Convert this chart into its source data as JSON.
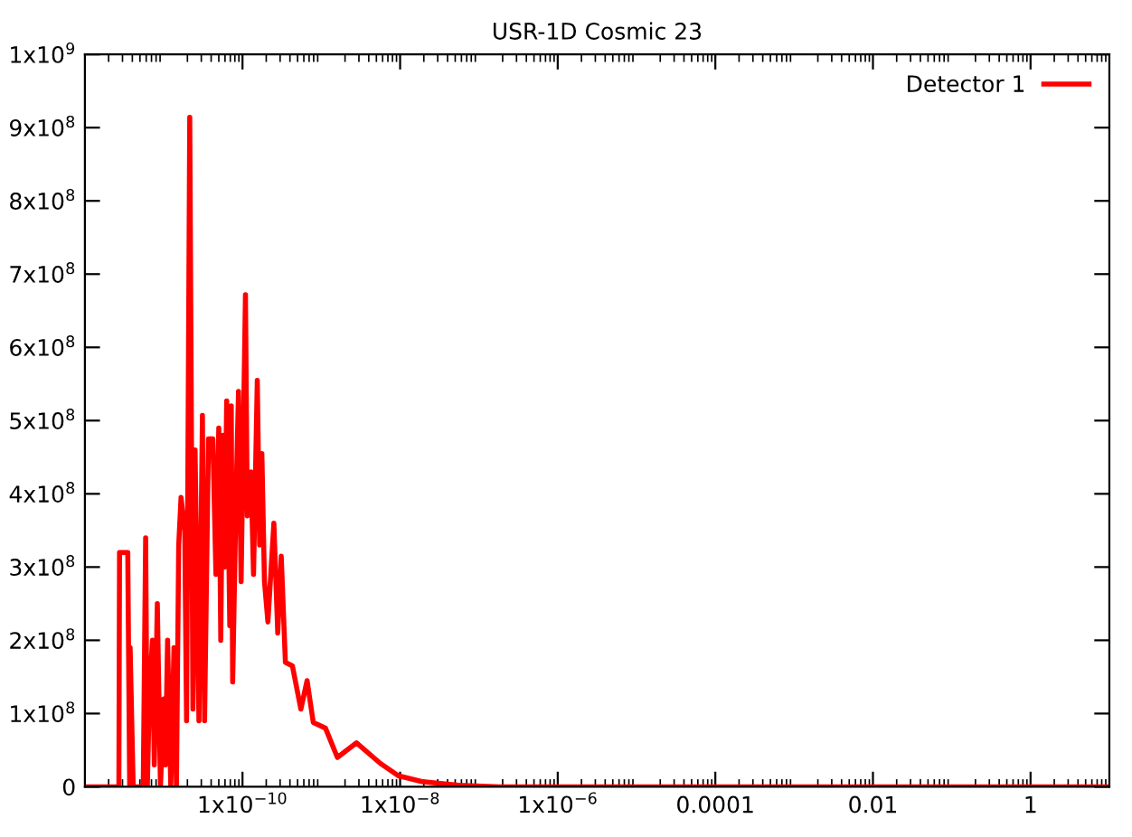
{
  "chart_data": {
    "type": "line",
    "title": "USR-1D Cosmic 23",
    "log": "x",
    "legend": "top right",
    "grid": false,
    "marker": "none",
    "line_style": "solid",
    "xlim": [
      1e-12,
      10
    ],
    "ylim": [
      0,
      1000000000
    ],
    "xticks": [
      {
        "value": 1e-10,
        "label": "1x10$^{−10}$"
      },
      {
        "value": 1e-08,
        "label": "1x10$^{−8}$"
      },
      {
        "value": 1e-06,
        "label": "1x10$^{−6}$"
      },
      0.0001,
      0.01,
      1
    ],
    "yticks": [
      0,
      {
        "value": 100000000,
        "label": "1x10$^{8}$"
      },
      {
        "value": 200000000,
        "label": "2x10$^{8}$"
      },
      {
        "value": 300000000,
        "label": "3x10$^{8}$"
      },
      {
        "value": 400000000,
        "label": "4x10$^{8}$"
      },
      {
        "value": 500000000,
        "label": "5x10$^{8}$"
      },
      {
        "value": 600000000,
        "label": "6x10$^{8}$"
      },
      {
        "value": 700000000,
        "label": "7x10$^{8}$"
      },
      {
        "value": 800000000,
        "label": "8x10$^{8}$"
      },
      {
        "value": 900000000,
        "label": "9x10$^{8}$"
      },
      {
        "value": 1000000000,
        "label": "1x10$^{9}$"
      }
    ],
    "series": [
      {
        "name": "Detector 1",
        "color": "#ff0000",
        "x": [
          1e-12,
          2.7e-12,
          2.75e-12,
          3.5e-12,
          3.7e-12,
          3.75e-12,
          4.1e-12,
          5.5e-12,
          5.9e-12,
          6.2e-12,
          6.6e-12,
          7.2e-12,
          7.6e-12,
          8.3e-12,
          9.1e-12,
          1e-11,
          1.05e-11,
          1.12e-11,
          1.23e-11,
          1.35e-11,
          1.45e-11,
          1.55e-11,
          1.66e-11,
          1.85e-11,
          1.95e-11,
          2.14e-11,
          2.35e-11,
          2.5e-11,
          2.8e-11,
          3.1e-11,
          3.3e-11,
          3.7e-11,
          4.2e-11,
          4.6e-11,
          5e-11,
          5.3e-11,
          5.6e-11,
          5.9e-11,
          6.3e-11,
          6.9e-11,
          7.2e-11,
          7.5e-11,
          8.3e-11,
          8.9e-11,
          9.6e-11,
          1.09e-10,
          1.15e-10,
          1.28e-10,
          1.38e-10,
          1.54e-10,
          1.65e-10,
          1.76e-10,
          1.9e-10,
          2.1e-10,
          2.5e-10,
          2.8e-10,
          3.1e-10,
          3.5e-10,
          4.3e-10,
          5.5e-10,
          6.6e-10,
          7.9e-10,
          1.13e-09,
          1.6e-09,
          2.8e-09,
          5.6e-09,
          9.5e-09,
          1.9e-08,
          5.6e-08,
          1.8e-07,
          10
        ],
        "values": [
          0,
          0,
          320000000,
          320000000,
          0,
          190000000,
          0,
          0,
          340000000,
          0,
          130000000,
          200000000,
          30000000,
          250000000,
          0,
          120000000,
          30000000,
          200000000,
          0,
          190000000,
          0,
          330000000,
          395000000,
          350000000,
          90000000,
          914000000,
          106000000,
          460000000,
          90000000,
          507000000,
          90000000,
          475000000,
          475000000,
          290000000,
          490000000,
          200000000,
          480000000,
          300000000,
          527000000,
          220000000,
          520000000,
          143000000,
          400000000,
          540000000,
          280000000,
          672000000,
          370000000,
          430000000,
          290000000,
          555000000,
          330000000,
          455000000,
          280000000,
          225000000,
          360000000,
          210000000,
          315000000,
          170000000,
          165000000,
          106000000,
          145000000,
          88000000,
          80000000,
          40000000,
          60000000,
          32000000,
          15000000,
          7000000,
          2000000,
          0,
          0
        ]
      }
    ]
  }
}
